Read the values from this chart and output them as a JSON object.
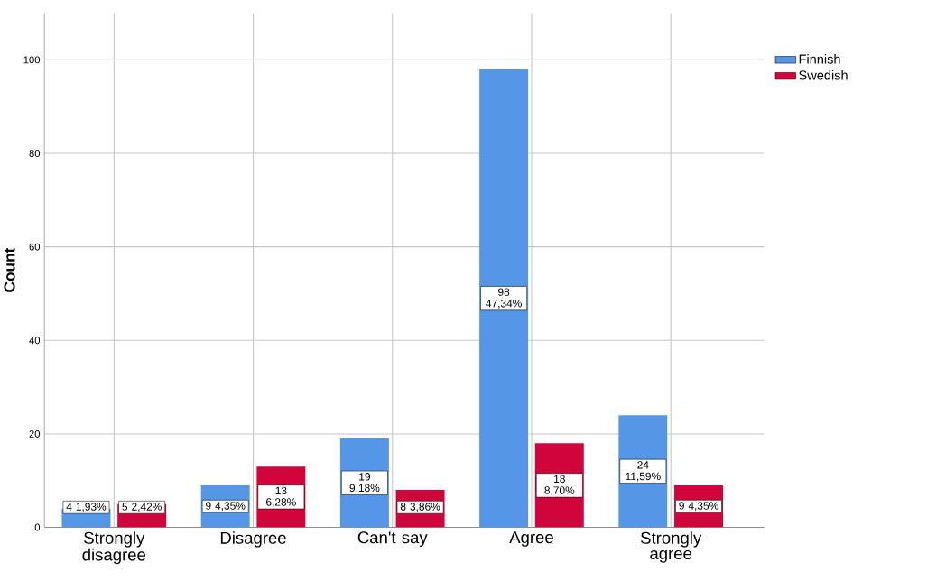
{
  "chart_data": {
    "type": "bar",
    "ylabel": "Count",
    "categories": [
      "Strongly disagree",
      "Disagree",
      "Can't say",
      "Agree",
      "Strongly agree"
    ],
    "series": [
      {
        "name": "Finnish",
        "color": "#5596e6",
        "values": [
          4,
          9,
          19,
          98,
          24
        ],
        "value_labels": [
          "4 1,93%",
          "9 4,35%",
          "19 9,18%",
          "98 47,34%",
          "24 11,59%"
        ]
      },
      {
        "name": "Swedish",
        "color": "#d1043c",
        "values": [
          5,
          13,
          8,
          18,
          9
        ],
        "value_labels": [
          "5 2,42%",
          "13 6,28%",
          "8 3,86%",
          "18 8,70%",
          "9 4,35%"
        ]
      }
    ],
    "ylim": [
      0,
      110
    ],
    "yticks": [
      0,
      20,
      40,
      60,
      80,
      100
    ],
    "grid": true,
    "legend": "top right"
  }
}
